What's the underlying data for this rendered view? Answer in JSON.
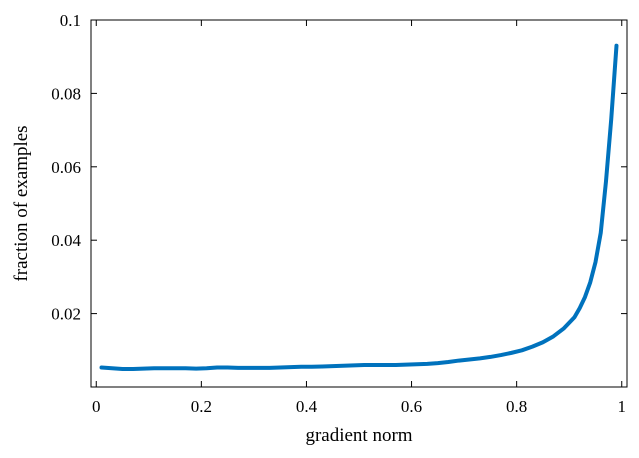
{
  "chart_data": {
    "type": "line",
    "title": "",
    "xlabel": "gradient norm",
    "ylabel": "fraction of examples",
    "xlim": [
      -0.01,
      1.01
    ],
    "ylim": [
      0,
      0.1
    ],
    "xticks": [
      0,
      0.2,
      0.4,
      0.6,
      0.8,
      1
    ],
    "xtick_labels": [
      "0",
      "0.2",
      "0.4",
      "0.6",
      "0.8",
      "1"
    ],
    "yticks": [
      0.02,
      0.04,
      0.06,
      0.08,
      0.1
    ],
    "ytick_labels": [
      "0.02",
      "0.04",
      "0.06",
      "0.08",
      "0.1"
    ],
    "grid": false,
    "series": [
      {
        "color": "#0072BD",
        "x": [
          0.01,
          0.03,
          0.05,
          0.07,
          0.09,
          0.11,
          0.13,
          0.15,
          0.17,
          0.19,
          0.21,
          0.23,
          0.25,
          0.27,
          0.29,
          0.31,
          0.33,
          0.35,
          0.37,
          0.39,
          0.41,
          0.43,
          0.45,
          0.47,
          0.49,
          0.51,
          0.53,
          0.55,
          0.57,
          0.59,
          0.61,
          0.63,
          0.65,
          0.67,
          0.69,
          0.71,
          0.73,
          0.75,
          0.77,
          0.79,
          0.81,
          0.83,
          0.85,
          0.87,
          0.89,
          0.91,
          0.92,
          0.93,
          0.94,
          0.95,
          0.96,
          0.97,
          0.98,
          0.99
        ],
        "y": [
          0.0053,
          0.0051,
          0.0049,
          0.0049,
          0.005,
          0.0051,
          0.0051,
          0.0051,
          0.0051,
          0.005,
          0.0051,
          0.0053,
          0.0053,
          0.0052,
          0.0052,
          0.0052,
          0.0052,
          0.0053,
          0.0054,
          0.0055,
          0.0055,
          0.0056,
          0.0057,
          0.0058,
          0.0059,
          0.006,
          0.006,
          0.006,
          0.006,
          0.0061,
          0.0062,
          0.0063,
          0.0065,
          0.0068,
          0.0072,
          0.0075,
          0.0078,
          0.0082,
          0.0087,
          0.0093,
          0.01,
          0.011,
          0.0122,
          0.0138,
          0.016,
          0.019,
          0.0215,
          0.0245,
          0.0285,
          0.034,
          0.042,
          0.056,
          0.073,
          0.093
        ]
      }
    ]
  }
}
